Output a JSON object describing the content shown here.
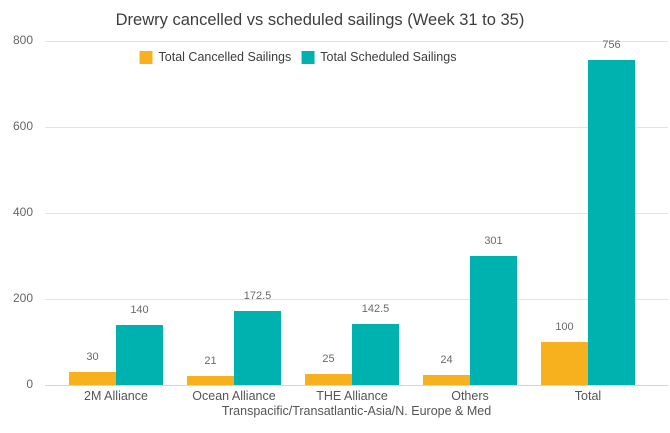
{
  "chart_data": {
    "type": "bar",
    "title": "Drewry cancelled vs scheduled sailings (Week 31 to 35)",
    "xlabel": "Transpacific/Transatlantic-Asia/N. Europe & Med",
    "ylabel": "",
    "ylim": [
      0,
      800
    ],
    "yticks": [
      0,
      200,
      400,
      600,
      800
    ],
    "grid": true,
    "legend_position": "top-center",
    "categories": [
      "2M Alliance",
      "Ocean Alliance",
      "THE Alliance",
      "Others",
      "Total"
    ],
    "series": [
      {
        "name": "Total Cancelled Sailings",
        "color": "#F8B11E",
        "values": [
          30,
          21,
          25,
          24,
          100
        ]
      },
      {
        "name": "Total Scheduled Sailings",
        "color": "#00B2AF",
        "values": [
          140,
          172.5,
          142.5,
          301,
          756
        ]
      }
    ],
    "data_labels": [
      "30",
      "21",
      "25",
      "24",
      "100",
      "140",
      "172.5",
      "142.5",
      "301",
      "756"
    ]
  }
}
